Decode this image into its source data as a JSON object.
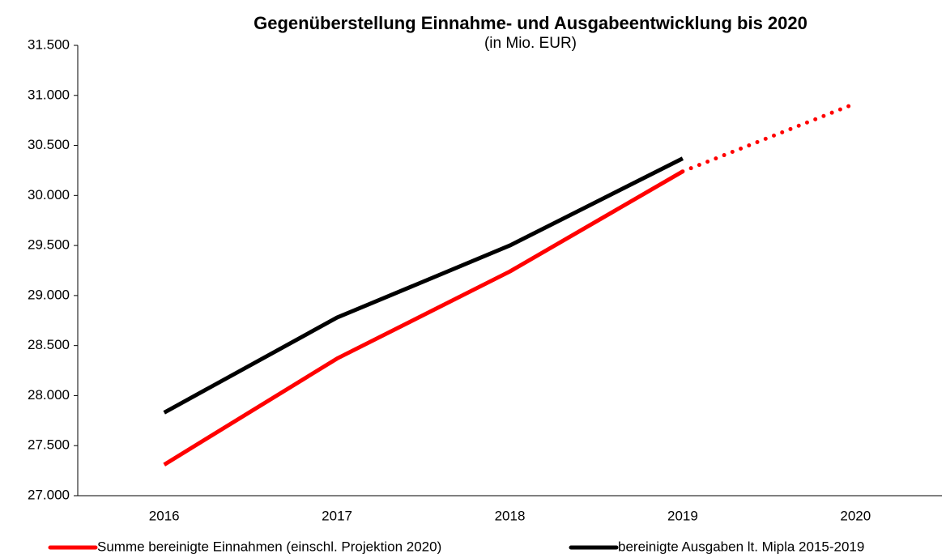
{
  "chart_data": {
    "type": "line",
    "title": "Gegenüberstellung Einnahme- und Ausgabeentwicklung bis 2020",
    "subtitle": "(in Mio. EUR)",
    "categories": [
      "2016",
      "2017",
      "2018",
      "2019",
      "2020"
    ],
    "series": [
      {
        "name": "Summe bereinigte Einnahmen (einschl. Projektion 2020)",
        "color": "#ff0000",
        "values": [
          27310,
          28370,
          29240,
          30240,
          30920
        ],
        "dotted_from": 3
      },
      {
        "name": "bereinigte Ausgaben lt. Mipla 2015-2019",
        "color": "#000000",
        "values": [
          27830,
          28780,
          29500,
          30370,
          null
        ]
      }
    ],
    "ylim": [
      27000,
      31500
    ],
    "yticks": [
      {
        "value": 27000,
        "label": "27.000"
      },
      {
        "value": 27500,
        "label": "27.500"
      },
      {
        "value": 28000,
        "label": "28.000"
      },
      {
        "value": 28500,
        "label": "28.500"
      },
      {
        "value": 29000,
        "label": "29.000"
      },
      {
        "value": 29500,
        "label": "29.500"
      },
      {
        "value": 30000,
        "label": "30.000"
      },
      {
        "value": 30500,
        "label": "30.500"
      },
      {
        "value": 31000,
        "label": "31.000"
      },
      {
        "value": 31500,
        "label": "31.500"
      }
    ],
    "grid": false,
    "legend": "bottom"
  }
}
